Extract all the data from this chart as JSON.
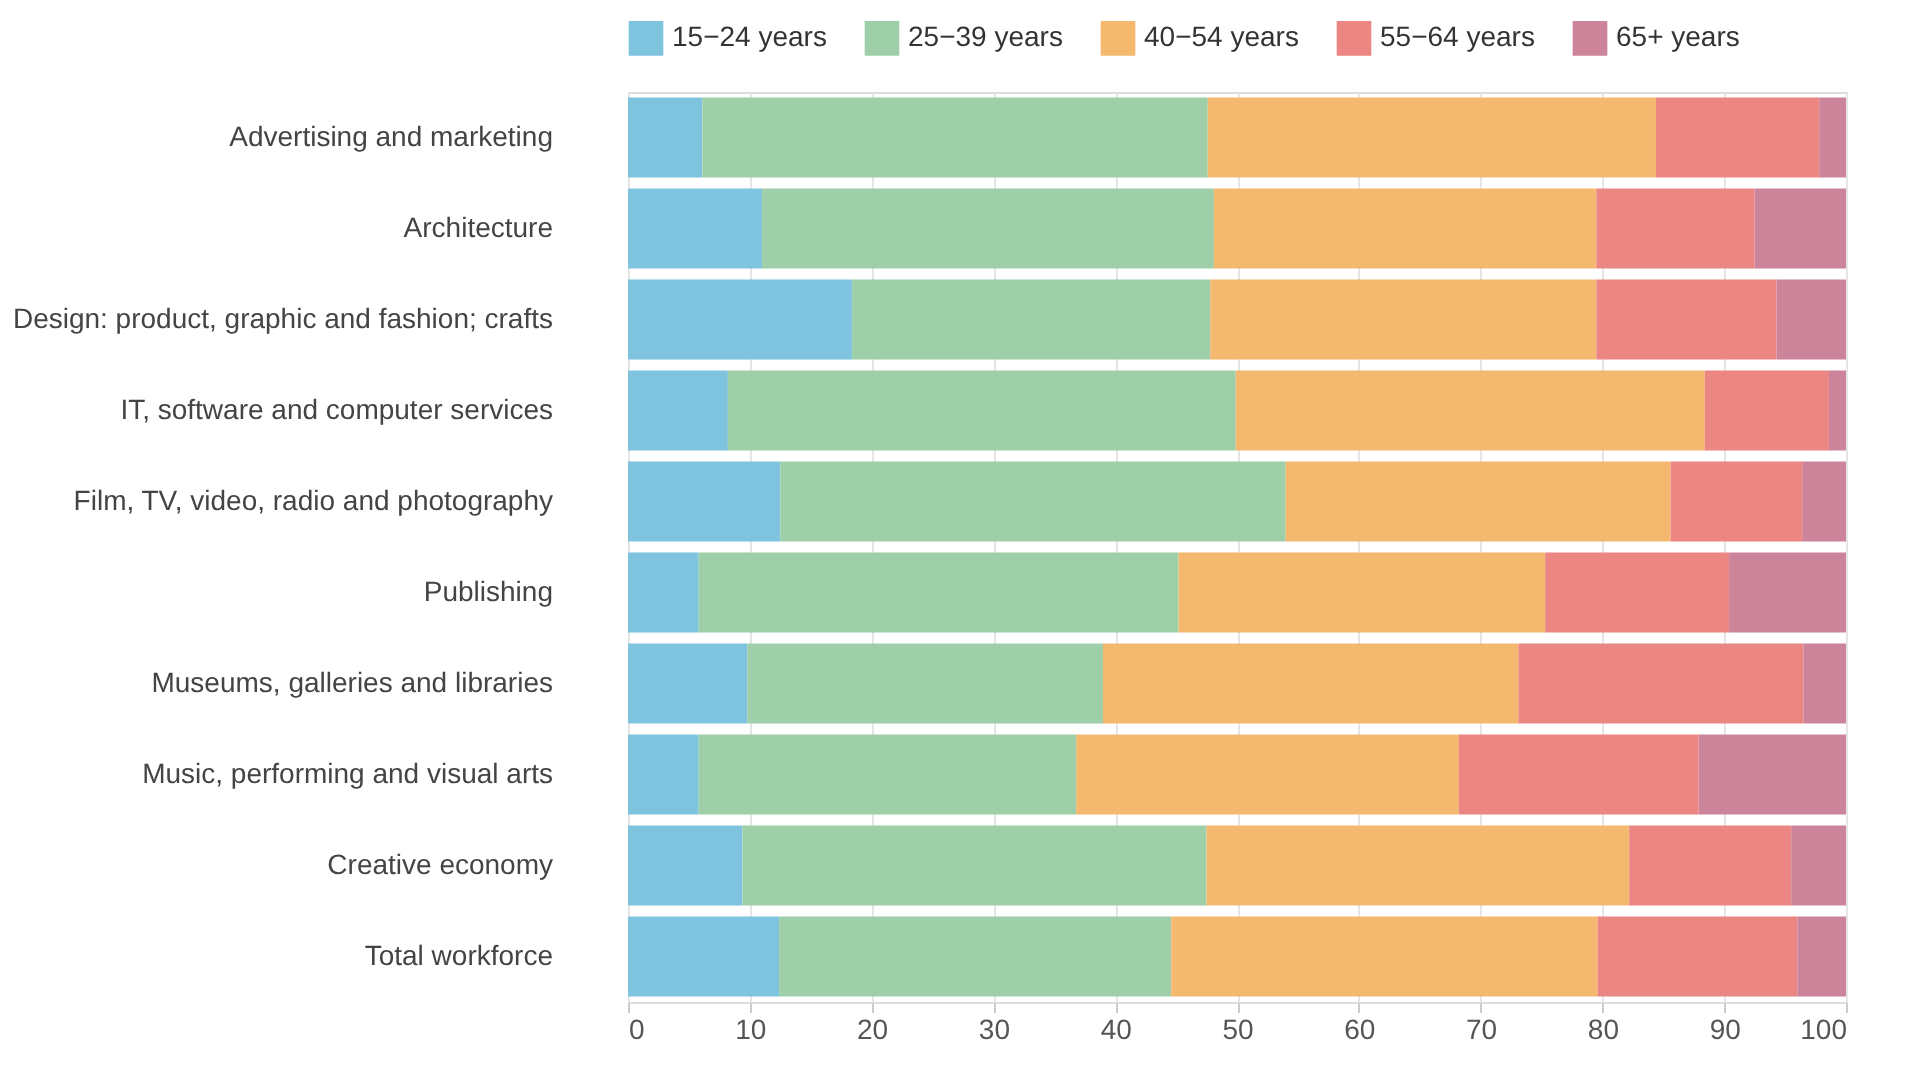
{
  "chart_data": {
    "type": "bar",
    "orientation": "horizontal",
    "stacked": true,
    "categories": [
      "Advertising and marketing",
      "Architecture",
      "Design: product, graphic and fashion; crafts",
      "IT, software and computer services",
      "Film, TV, video, radio and photography",
      "Publishing",
      "Museums, galleries and libraries",
      "Music, performing and visual arts",
      "Creative economy",
      "Total workforce"
    ],
    "series": [
      {
        "name": "15−24 years",
        "color": "#7fc4df",
        "values": [
          6.1,
          11.0,
          18.4,
          8.2,
          12.5,
          5.8,
          9.8,
          5.8,
          9.4,
          12.4
        ]
      },
      {
        "name": "25−39 years",
        "color": "#9ecfa8",
        "values": [
          41.5,
          37.1,
          29.4,
          41.7,
          41.5,
          39.4,
          29.2,
          31.0,
          38.1,
          32.2
        ]
      },
      {
        "name": "40−54 years",
        "color": "#f4b86f",
        "values": [
          36.8,
          31.4,
          31.7,
          38.5,
          31.6,
          30.1,
          34.1,
          31.4,
          34.7,
          35.0
        ]
      },
      {
        "name": "55−64 years",
        "color": "#ec8683",
        "values": [
          13.4,
          13.0,
          14.8,
          10.2,
          10.8,
          15.1,
          23.4,
          19.7,
          13.3,
          16.4
        ]
      },
      {
        "name": "65+ years",
        "color": "#cc849b",
        "values": [
          2.2,
          7.5,
          5.7,
          1.4,
          3.6,
          9.6,
          3.5,
          12.1,
          4.5,
          4.0
        ]
      }
    ],
    "xlim": [
      0,
      100
    ],
    "xticks": [
      0,
      10,
      20,
      30,
      40,
      50,
      60,
      70,
      80,
      90,
      100
    ],
    "grid": "x",
    "legend": "top"
  }
}
